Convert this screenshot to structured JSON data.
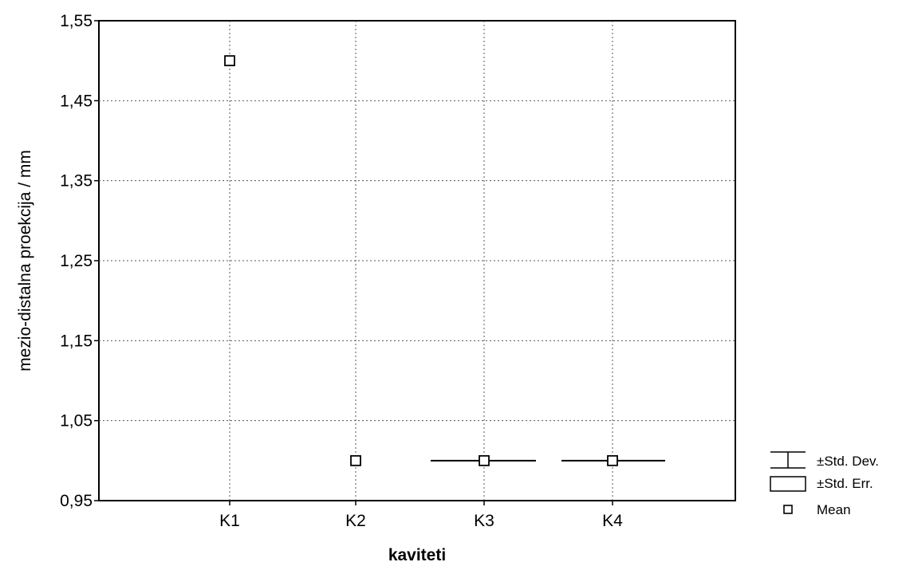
{
  "chart_data": {
    "type": "scatter",
    "title": "",
    "xlabel": "kaviteti",
    "ylabel": "mezio-distalna proekcija / mm",
    "categories": [
      "K1",
      "K2",
      "K3",
      "K4"
    ],
    "ylim": [
      0.95,
      1.55
    ],
    "yticks": [
      "1,55",
      "1,45",
      "1,35",
      "1,25",
      "1,15",
      "1,05",
      "0,95"
    ],
    "ytick_values": [
      1.55,
      1.45,
      1.35,
      1.25,
      1.15,
      1.05,
      0.95
    ],
    "grid": true,
    "series": [
      {
        "name": "Mean",
        "values": [
          1.5,
          1.0,
          1.0,
          1.0
        ],
        "std_dev": [
          0.0,
          0.0,
          0.0,
          0.0
        ],
        "std_err": [
          0.0,
          0.0,
          0.0,
          0.0
        ]
      }
    ],
    "legend": {
      "position": "right",
      "items": [
        {
          "label": "±Std. Dev.",
          "icon": "whisker-icon"
        },
        {
          "label": "±Std. Err.",
          "icon": "box-icon"
        },
        {
          "label": "Mean",
          "icon": "square-marker-icon"
        }
      ]
    }
  }
}
